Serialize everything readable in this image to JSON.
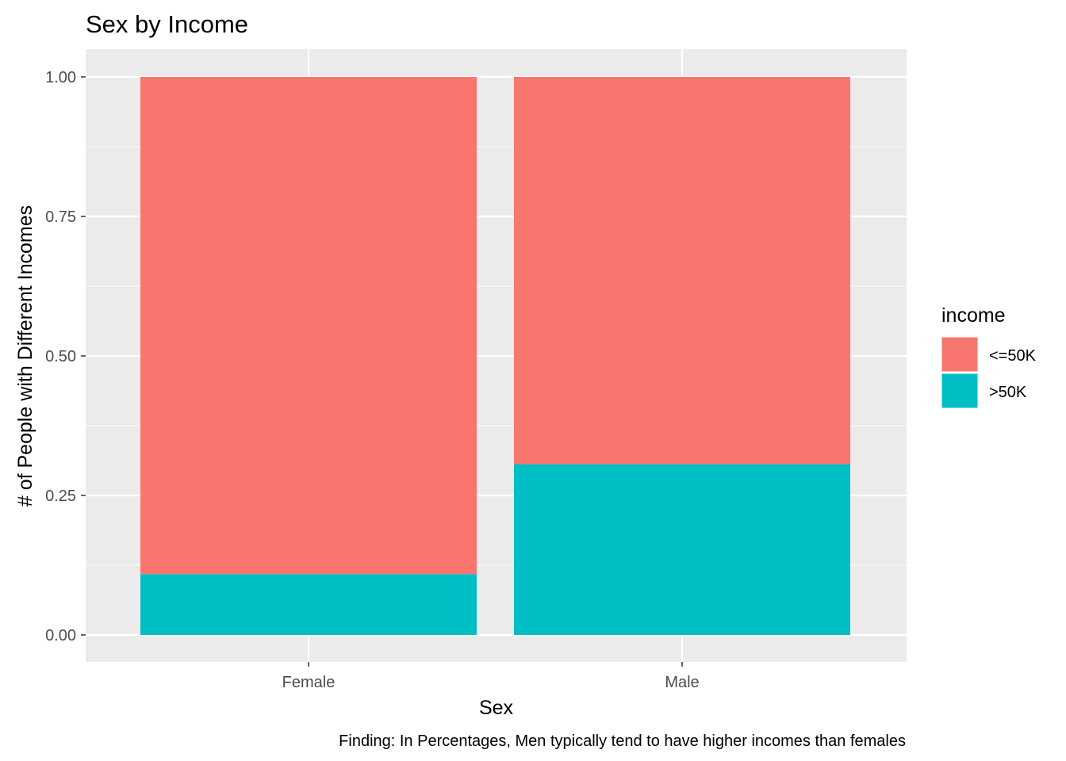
{
  "chart_data": {
    "type": "bar",
    "stacked": true,
    "title": "Sex by Income",
    "xlabel": "Sex",
    "ylabel": "# of People with Different Incomes",
    "caption": "Finding: In Percentages, Men typically tend to have higher incomes than females",
    "categories": [
      "Female",
      "Male"
    ],
    "ylim": [
      0,
      1
    ],
    "yticks": [
      "0.00",
      "0.25",
      "0.50",
      "0.75",
      "1.00"
    ],
    "legend": {
      "title": "income",
      "position": "right"
    },
    "grid": true,
    "series": [
      {
        "name": ">50K",
        "color": "#00BFC4",
        "values": [
          0.109,
          0.306
        ]
      },
      {
        "name": "<=50K",
        "color": "#F8766D",
        "values": [
          0.891,
          0.694
        ]
      }
    ]
  }
}
